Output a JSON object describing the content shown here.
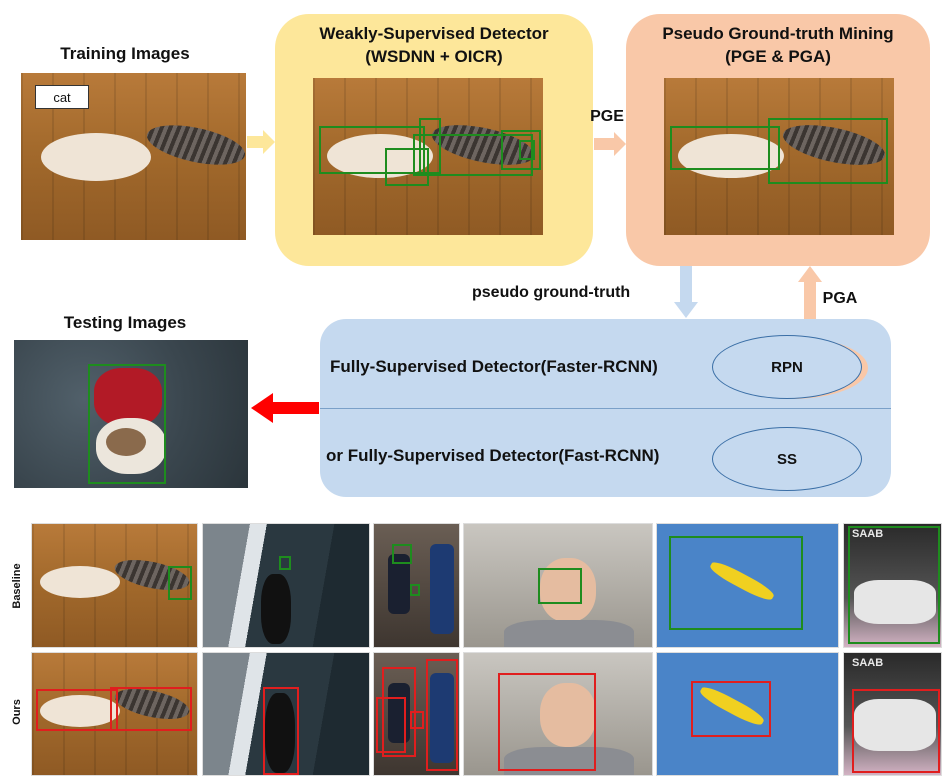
{
  "training": {
    "title": "Training Images",
    "tag": "cat"
  },
  "wsd": {
    "title_line1": "Weakly-Supervised Detector",
    "title_line2": "(WSDNN + OICR)"
  },
  "pgm": {
    "title_line1": "Pseudo Ground-truth Mining",
    "title_line2": "(PGE & PGA)"
  },
  "arrows": {
    "pge": "PGE",
    "pga": "PGA",
    "pseudo": "pseudo ground-truth"
  },
  "testing": {
    "title": "Testing Images"
  },
  "fsd": {
    "row1": "Fully-Supervised Detector(Faster-RCNN)",
    "row1_module": "RPN",
    "row2": "or Fully-Supervised Detector(Fast-RCNN)",
    "row2_module": "SS"
  },
  "examples": {
    "baseline": "Baseline",
    "ours": "Ours",
    "logo": "SAAB"
  },
  "colors": {
    "yellow_panel": "#fde79a",
    "orange_panel": "#f9c8a8",
    "blue_panel": "#c5d9ef",
    "green_box": "#1e8c1e",
    "red_box": "#e01e1e",
    "red_arrow": "#ff0000"
  }
}
